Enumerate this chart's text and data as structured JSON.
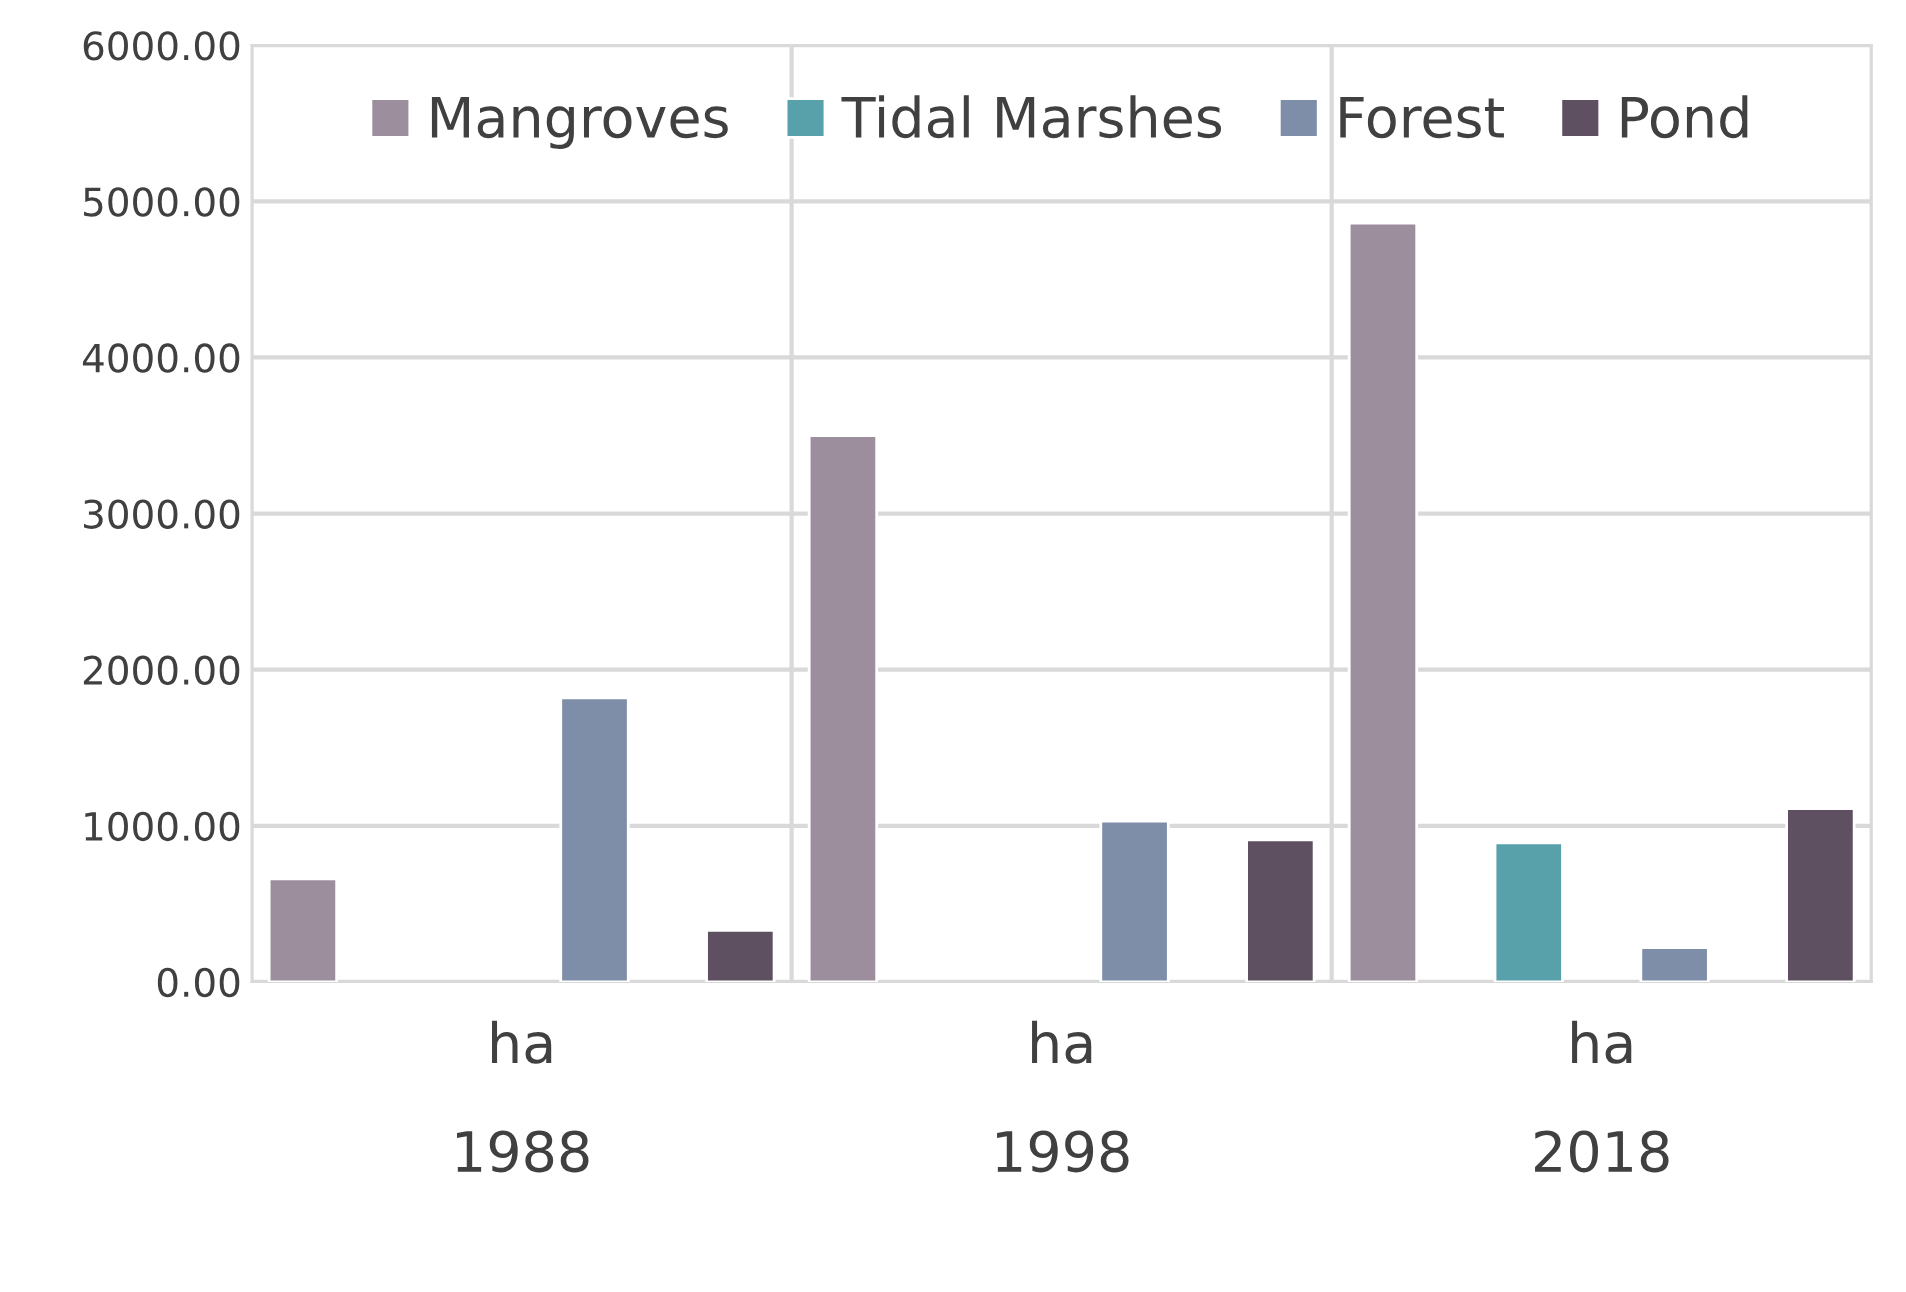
{
  "chart_data": {
    "type": "bar",
    "categories": [
      "ha\n1988",
      "ha\n1998",
      "ha\n2018"
    ],
    "series": [
      {
        "name": "Mangroves",
        "color": "#9d8e9e",
        "values": [
          660,
          3500,
          4860
        ]
      },
      {
        "name": "Tidal Marshes",
        "color": "#58a0aa",
        "values": [
          null,
          null,
          890
        ]
      },
      {
        "name": "Forest",
        "color": "#7f8ea8",
        "values": [
          1820,
          1030,
          220
        ]
      },
      {
        "name": "Pond",
        "color": "#5e5060",
        "values": [
          330,
          910,
          1110
        ]
      }
    ],
    "ylim": [
      0,
      6000
    ],
    "yticks": [
      {
        "value": 0,
        "label": "0.00"
      },
      {
        "value": 1000,
        "label": "1000.00"
      },
      {
        "value": 2000,
        "label": "2000.00"
      },
      {
        "value": 3000,
        "label": "3000.00"
      },
      {
        "value": 4000,
        "label": "4000.00"
      },
      {
        "value": 5000,
        "label": "5000.00"
      },
      {
        "value": 6000,
        "label": "6000.00"
      }
    ],
    "grid": true,
    "legend": "top"
  }
}
